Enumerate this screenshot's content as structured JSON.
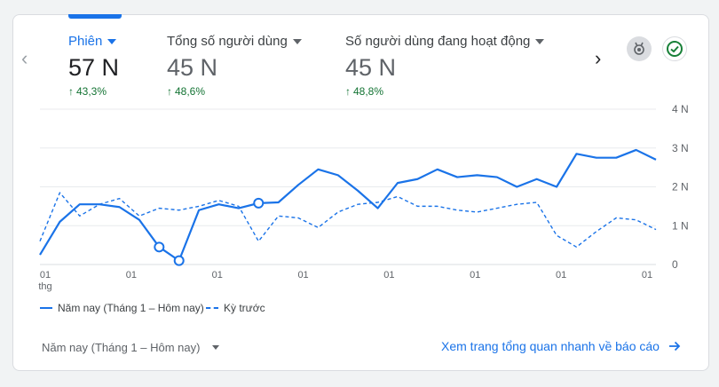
{
  "metrics": [
    {
      "label": "Phiên",
      "value": "57 N",
      "change": "43,3%",
      "active": true
    },
    {
      "label": "Tổng số người dùng",
      "value": "45 N",
      "change": "48,6%",
      "active": false
    },
    {
      "label": "Số người dùng đang hoạt động",
      "value": "45 N",
      "change": "48,8%",
      "active": false
    }
  ],
  "icons": {
    "prev": "chevron-left-icon",
    "next": "chevron-right-icon",
    "insights": "award-icon",
    "status": "check-circle-icon",
    "link_arrow": "arrow-right-icon"
  },
  "colors": {
    "accent": "#1a73e8",
    "positive": "#137333",
    "grid": "#e8eaed",
    "text": "#202124",
    "muted": "#5f6368"
  },
  "chart_data": {
    "type": "line",
    "x_tick_labels": [
      "01",
      "01",
      "01",
      "01",
      "01",
      "01",
      "01",
      "01"
    ],
    "x_tick_sublabel": "thg",
    "y_tick_labels": [
      "4 N",
      "3 N",
      "2 N",
      "1 N",
      "0"
    ],
    "ylim": [
      0,
      4000
    ],
    "grid": true,
    "legend_position": "bottom-left",
    "series": [
      {
        "name": "Năm nay (Tháng 1 – Hôm nay)",
        "style": "solid",
        "values": [
          250,
          1100,
          1550,
          1550,
          1480,
          1150,
          450,
          100,
          1400,
          1550,
          1450,
          1580,
          1600,
          2050,
          2450,
          2300,
          1900,
          1450,
          2100,
          2200,
          2450,
          2250,
          2300,
          2250,
          2000,
          2200,
          2000,
          2850,
          2750,
          2750,
          2950,
          2700
        ],
        "markers": [
          6,
          7,
          11
        ]
      },
      {
        "name": "Kỳ trước",
        "style": "dashed",
        "values": [
          600,
          1850,
          1250,
          1550,
          1700,
          1250,
          1450,
          1400,
          1500,
          1650,
          1500,
          600,
          1250,
          1200,
          950,
          1350,
          1550,
          1600,
          1750,
          1500,
          1500,
          1400,
          1350,
          1450,
          1550,
          1600,
          750,
          450,
          850,
          1200,
          1150,
          900
        ]
      }
    ]
  },
  "footer": {
    "range_label": "Năm nay (Tháng 1 – Hôm nay)",
    "link_label": "Xem trang tổng quan nhanh về báo cáo"
  }
}
